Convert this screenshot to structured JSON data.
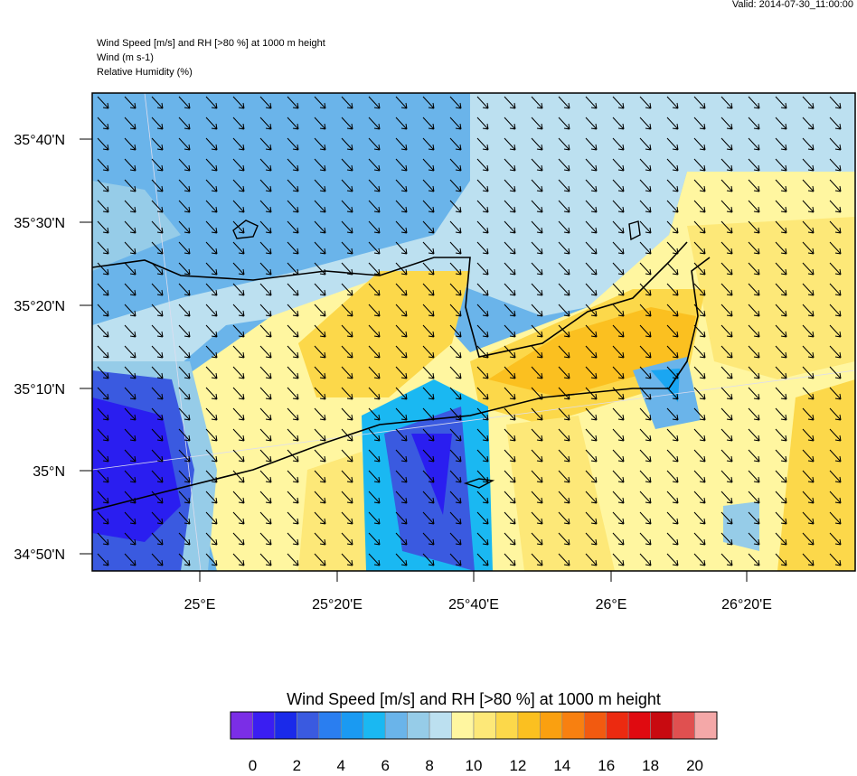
{
  "header": {
    "valid": "Valid: 2014-07-30_11:00:00",
    "title_lines": [
      "Wind Speed [m/s] and RH [>80 %] at 1000 m height",
      "Wind   (m s-1)",
      "Relative Humidity   (%)"
    ]
  },
  "map": {
    "lat_labels": [
      "35°40'N",
      "35°30'N",
      "35°20'N",
      "35°10'N",
      "35°N",
      "34°50'N"
    ],
    "lon_labels": [
      "25°E",
      "25°20'E",
      "25°40'E",
      "26°E",
      "26°20'E"
    ]
  },
  "colorbar": {
    "title": "Wind Speed [m/s] and RH [>80 %] at 1000 m height",
    "colors": [
      "#7b2ee6",
      "#3a1ef2",
      "#1a2aea",
      "#3a5ae0",
      "#2a7ef0",
      "#1a9af2",
      "#1ab8f2",
      "#6ab4ea",
      "#96cce8",
      "#bce0f0",
      "#fff6a0",
      "#fde878",
      "#fcd84a",
      "#fbc020",
      "#faa010",
      "#f88010",
      "#f25a10",
      "#ec2a10",
      "#e00a10",
      "#c80a10",
      "#e05050",
      "#f4a8a8"
    ],
    "ticks": [
      0,
      2,
      4,
      6,
      8,
      10,
      12,
      14,
      16,
      18,
      20
    ]
  }
}
